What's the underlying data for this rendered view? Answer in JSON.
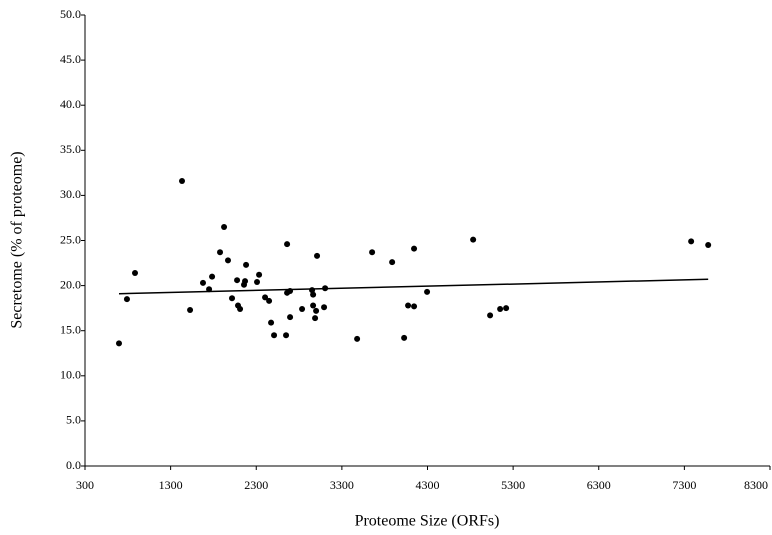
{
  "chart_data": {
    "type": "scatter",
    "x_label": "Proteome Size (ORFs)",
    "y_label": "Secretome (% of proteome)",
    "color": "#000000",
    "xlim": [
      300,
      8300
    ],
    "ylim": [
      0,
      50
    ],
    "xticks": [
      300,
      1300,
      2300,
      3300,
      4300,
      5300,
      6300,
      7300,
      8300
    ],
    "yticks": [
      {
        "value": 0,
        "label": "0.0"
      },
      {
        "value": 5,
        "label": "5.0"
      },
      {
        "value": 10,
        "label": "10.0"
      },
      {
        "value": 15,
        "label": "15.0"
      },
      {
        "value": 20,
        "label": "20.0"
      },
      {
        "value": 25,
        "label": "25.0"
      },
      {
        "value": 30,
        "label": "30.0"
      },
      {
        "value": 35,
        "label": "35.0"
      },
      {
        "value": 40,
        "label": "40.0"
      },
      {
        "value": 45,
        "label": "45.0"
      },
      {
        "value": 50,
        "label": "50.0"
      }
    ],
    "x": [
      697,
      790,
      884,
      1433,
      1527,
      1678,
      1749,
      1784,
      1877,
      1924,
      1970,
      2017,
      2076,
      2087,
      2111,
      2157,
      2169,
      2181,
      2309,
      2333,
      2403,
      2450,
      2473,
      2508,
      2648,
      2660,
      2660,
      2695,
      2695,
      2835,
      2952,
      2964,
      2964,
      2987,
      2999,
      3010,
      3092,
      3104,
      3478,
      3653,
      3887,
      4027,
      4073,
      4143,
      4143,
      4295,
      4833,
      5031,
      5148,
      5218,
      7379,
      7578
    ],
    "values": [
      13.6,
      18.5,
      21.4,
      31.6,
      17.3,
      20.3,
      19.6,
      21.0,
      23.7,
      26.5,
      22.8,
      18.6,
      20.6,
      17.8,
      17.4,
      20.1,
      20.5,
      22.3,
      20.4,
      21.2,
      18.7,
      18.3,
      15.9,
      14.5,
      14.5,
      24.6,
      19.2,
      19.4,
      16.5,
      17.4,
      19.5,
      19.0,
      17.8,
      16.4,
      17.2,
      23.3,
      17.6,
      19.7,
      14.1,
      23.7,
      22.6,
      14.2,
      17.8,
      17.7,
      24.1,
      19.3,
      25.1,
      16.7,
      17.4,
      17.5,
      24.9,
      24.5
    ],
    "trendline": {
      "x": [
        697,
        7578
      ],
      "values": [
        19.1,
        20.7
      ]
    }
  }
}
